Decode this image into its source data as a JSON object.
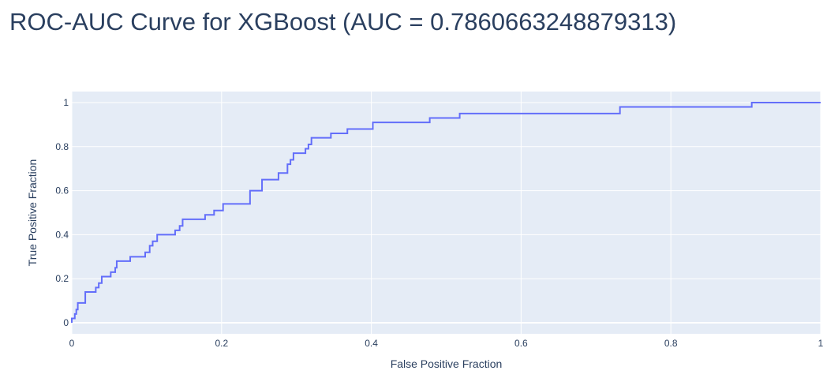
{
  "chart_data": {
    "type": "line",
    "title": "ROC-AUC Curve for XGBoost (AUC = 0.7860663248879313)",
    "xlabel": "False Positive Fraction",
    "ylabel": "True Positive Fraction",
    "xlim": [
      0,
      1
    ],
    "ylim": [
      -0.05,
      1.05
    ],
    "grid": true,
    "x_ticks": [
      0,
      0.2,
      0.4,
      0.6,
      0.8,
      1
    ],
    "x_tick_labels": [
      "0",
      "0.2",
      "0.4",
      "0.6",
      "0.8",
      "1"
    ],
    "y_ticks": [
      0,
      0.2,
      0.4,
      0.6,
      0.8,
      1
    ],
    "y_tick_labels": [
      "0",
      "0.2",
      "0.4",
      "0.6",
      "0.8",
      "1"
    ],
    "colors": {
      "line": "#636efa",
      "plot_bg": "#e5ecf6",
      "grid": "#ffffff",
      "text": "#2a3f5f"
    },
    "x": [
      0,
      0,
      0.004,
      0.004,
      0.006,
      0.006,
      0.008,
      0.008,
      0.018,
      0.018,
      0.032,
      0.032,
      0.036,
      0.036,
      0.04,
      0.04,
      0.052,
      0.052,
      0.058,
      0.058,
      0.06,
      0.06,
      0.078,
      0.078,
      0.098,
      0.098,
      0.104,
      0.104,
      0.108,
      0.108,
      0.114,
      0.114,
      0.138,
      0.138,
      0.144,
      0.144,
      0.148,
      0.148,
      0.178,
      0.178,
      0.19,
      0.19,
      0.202,
      0.202,
      0.238,
      0.238,
      0.254,
      0.254,
      0.276,
      0.276,
      0.288,
      0.288,
      0.292,
      0.292,
      0.296,
      0.296,
      0.312,
      0.312,
      0.316,
      0.316,
      0.32,
      0.32,
      0.346,
      0.346,
      0.368,
      0.368,
      0.402,
      0.402,
      0.478,
      0.478,
      0.518,
      0.518,
      0.732,
      0.732,
      0.908,
      0.908,
      1
    ],
    "y": [
      0,
      0.02,
      0.02,
      0.04,
      0.04,
      0.06,
      0.06,
      0.09,
      0.09,
      0.14,
      0.14,
      0.16,
      0.16,
      0.18,
      0.18,
      0.21,
      0.21,
      0.23,
      0.23,
      0.25,
      0.25,
      0.28,
      0.28,
      0.3,
      0.3,
      0.32,
      0.32,
      0.35,
      0.35,
      0.37,
      0.37,
      0.4,
      0.4,
      0.42,
      0.42,
      0.44,
      0.44,
      0.47,
      0.47,
      0.49,
      0.49,
      0.51,
      0.51,
      0.54,
      0.54,
      0.6,
      0.6,
      0.65,
      0.65,
      0.68,
      0.68,
      0.72,
      0.72,
      0.74,
      0.74,
      0.77,
      0.77,
      0.79,
      0.79,
      0.81,
      0.81,
      0.84,
      0.84,
      0.86,
      0.86,
      0.88,
      0.88,
      0.91,
      0.91,
      0.93,
      0.93,
      0.95,
      0.95,
      0.98,
      0.98,
      1,
      1
    ]
  }
}
